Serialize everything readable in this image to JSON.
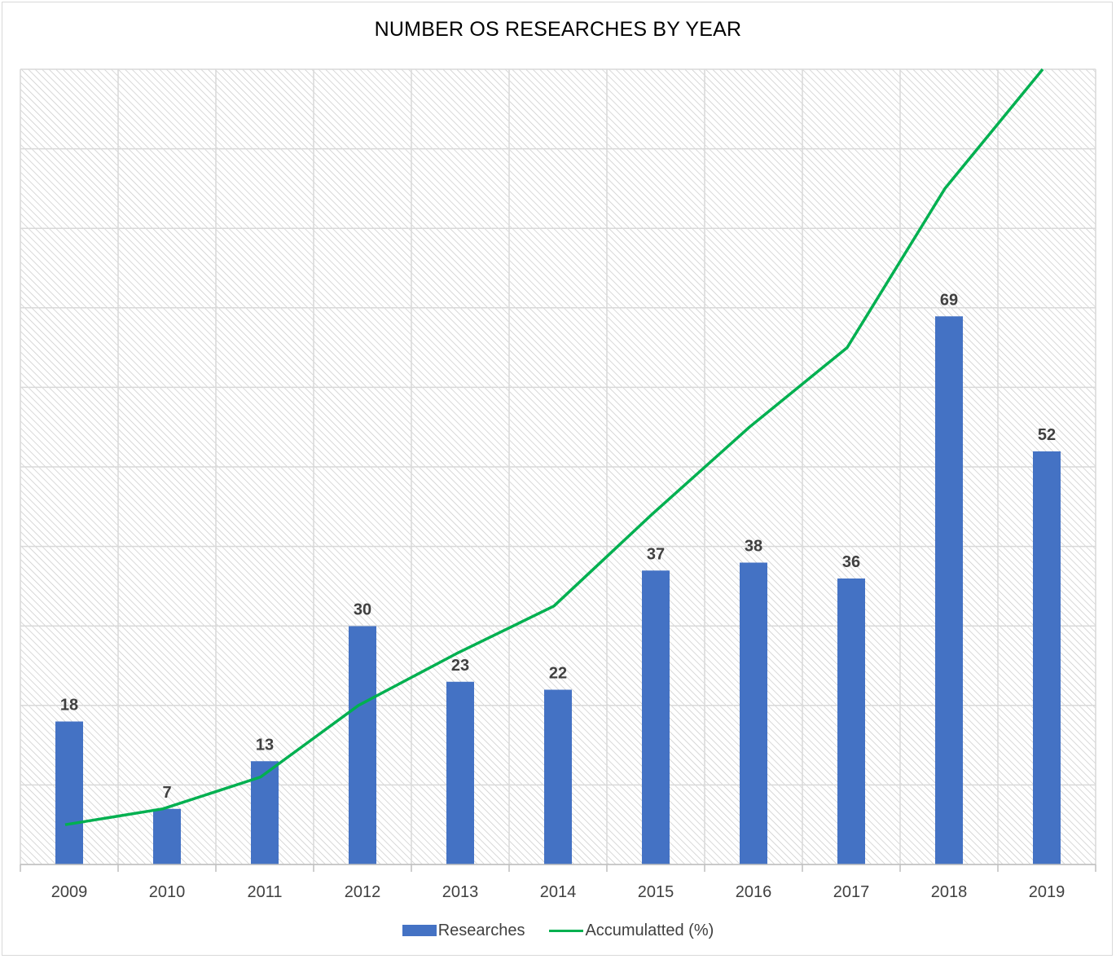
{
  "chart_data": {
    "type": "bar",
    "title": "NUMBER OS RESEARCHES BY YEAR",
    "xlabel": "",
    "ylabel": "",
    "categories": [
      "2009",
      "2010",
      "2011",
      "2012",
      "2013",
      "2014",
      "2015",
      "2016",
      "2017",
      "2018",
      "2019"
    ],
    "ylim": [
      0,
      100
    ],
    "grid": true,
    "legend_position": "bottom",
    "series": [
      {
        "name": "Researches",
        "type": "bar",
        "color": "#4472c4",
        "values": [
          18,
          7,
          13,
          30,
          23,
          22,
          37,
          38,
          36,
          69,
          52
        ]
      },
      {
        "name": "Accumulatted (%)",
        "type": "line",
        "color": "#00b050",
        "values": [
          5,
          7,
          11,
          20,
          26.5,
          32.5,
          44,
          55,
          65,
          85,
          100
        ]
      }
    ]
  }
}
